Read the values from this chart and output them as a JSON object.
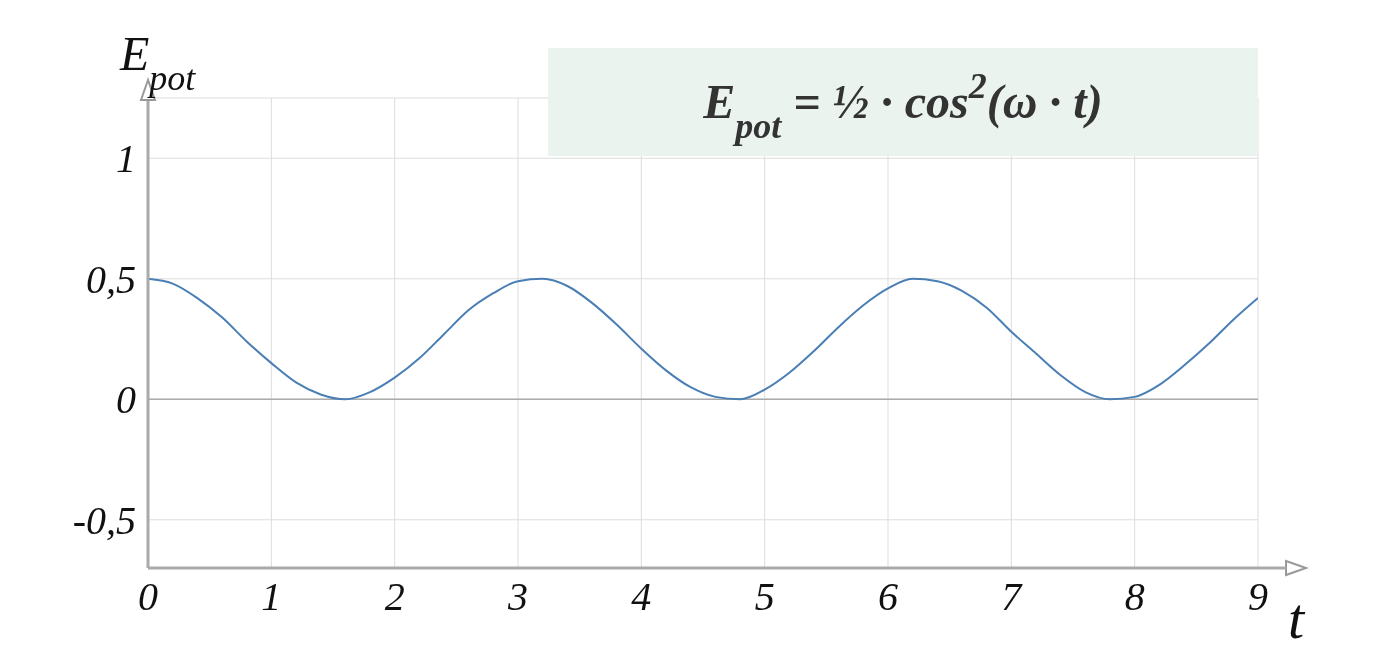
{
  "chart_data": {
    "type": "line",
    "xlabel": "t",
    "ylabel": "E$_{pot}$",
    "annotations": [
      "E$_{pot}$ = ½ · cos$^{2}$(ω · t)"
    ],
    "x": [
      0,
      0.2,
      0.4,
      0.6,
      0.8,
      1,
      1.2,
      1.4,
      1.6,
      1.8,
      2,
      2.2,
      2.4,
      2.6,
      2.8,
      3,
      3.2,
      3.4,
      3.6,
      3.8,
      4,
      4.2,
      4.4,
      4.6,
      4.8,
      5,
      5.2,
      5.4,
      5.6,
      5.8,
      6,
      6.2,
      6.4,
      6.6,
      6.8,
      7,
      7.2,
      7.4,
      7.6,
      7.8,
      8,
      8.2,
      8.4,
      8.6,
      8.8,
      9
    ],
    "series": [
      {
        "color": "#4a7fb5",
        "values": [
          0.5,
          0.48,
          0.42,
          0.34,
          0.24,
          0.15,
          0.07,
          0.02,
          0,
          0.03,
          0.09,
          0.17,
          0.27,
          0.37,
          0.44,
          0.49,
          0.5,
          0.47,
          0.4,
          0.31,
          0.21,
          0.12,
          0.05,
          0.01,
          0,
          0.04,
          0.11,
          0.2,
          0.3,
          0.39,
          0.46,
          0.5,
          0.49,
          0.45,
          0.38,
          0.28,
          0.19,
          0.1,
          0.03,
          0,
          0.01,
          0.06,
          0.14,
          0.23,
          0.33,
          0.42
        ]
      }
    ],
    "xlim": [
      0,
      9
    ],
    "xticks": [
      0,
      1,
      2,
      3,
      4,
      5,
      6,
      7,
      8,
      9
    ],
    "ylim": [
      -0.7,
      1.25
    ],
    "yticks": [
      {
        "value": -0.5,
        "label": "-0,5"
      },
      0,
      {
        "value": 0.5,
        "label": "0,5"
      },
      1
    ],
    "ref_lines": [
      {
        "axis": "y",
        "value": 0,
        "color": "#aaaaaa"
      }
    ],
    "grid": true,
    "marker": "none",
    "line_style": "solid"
  }
}
